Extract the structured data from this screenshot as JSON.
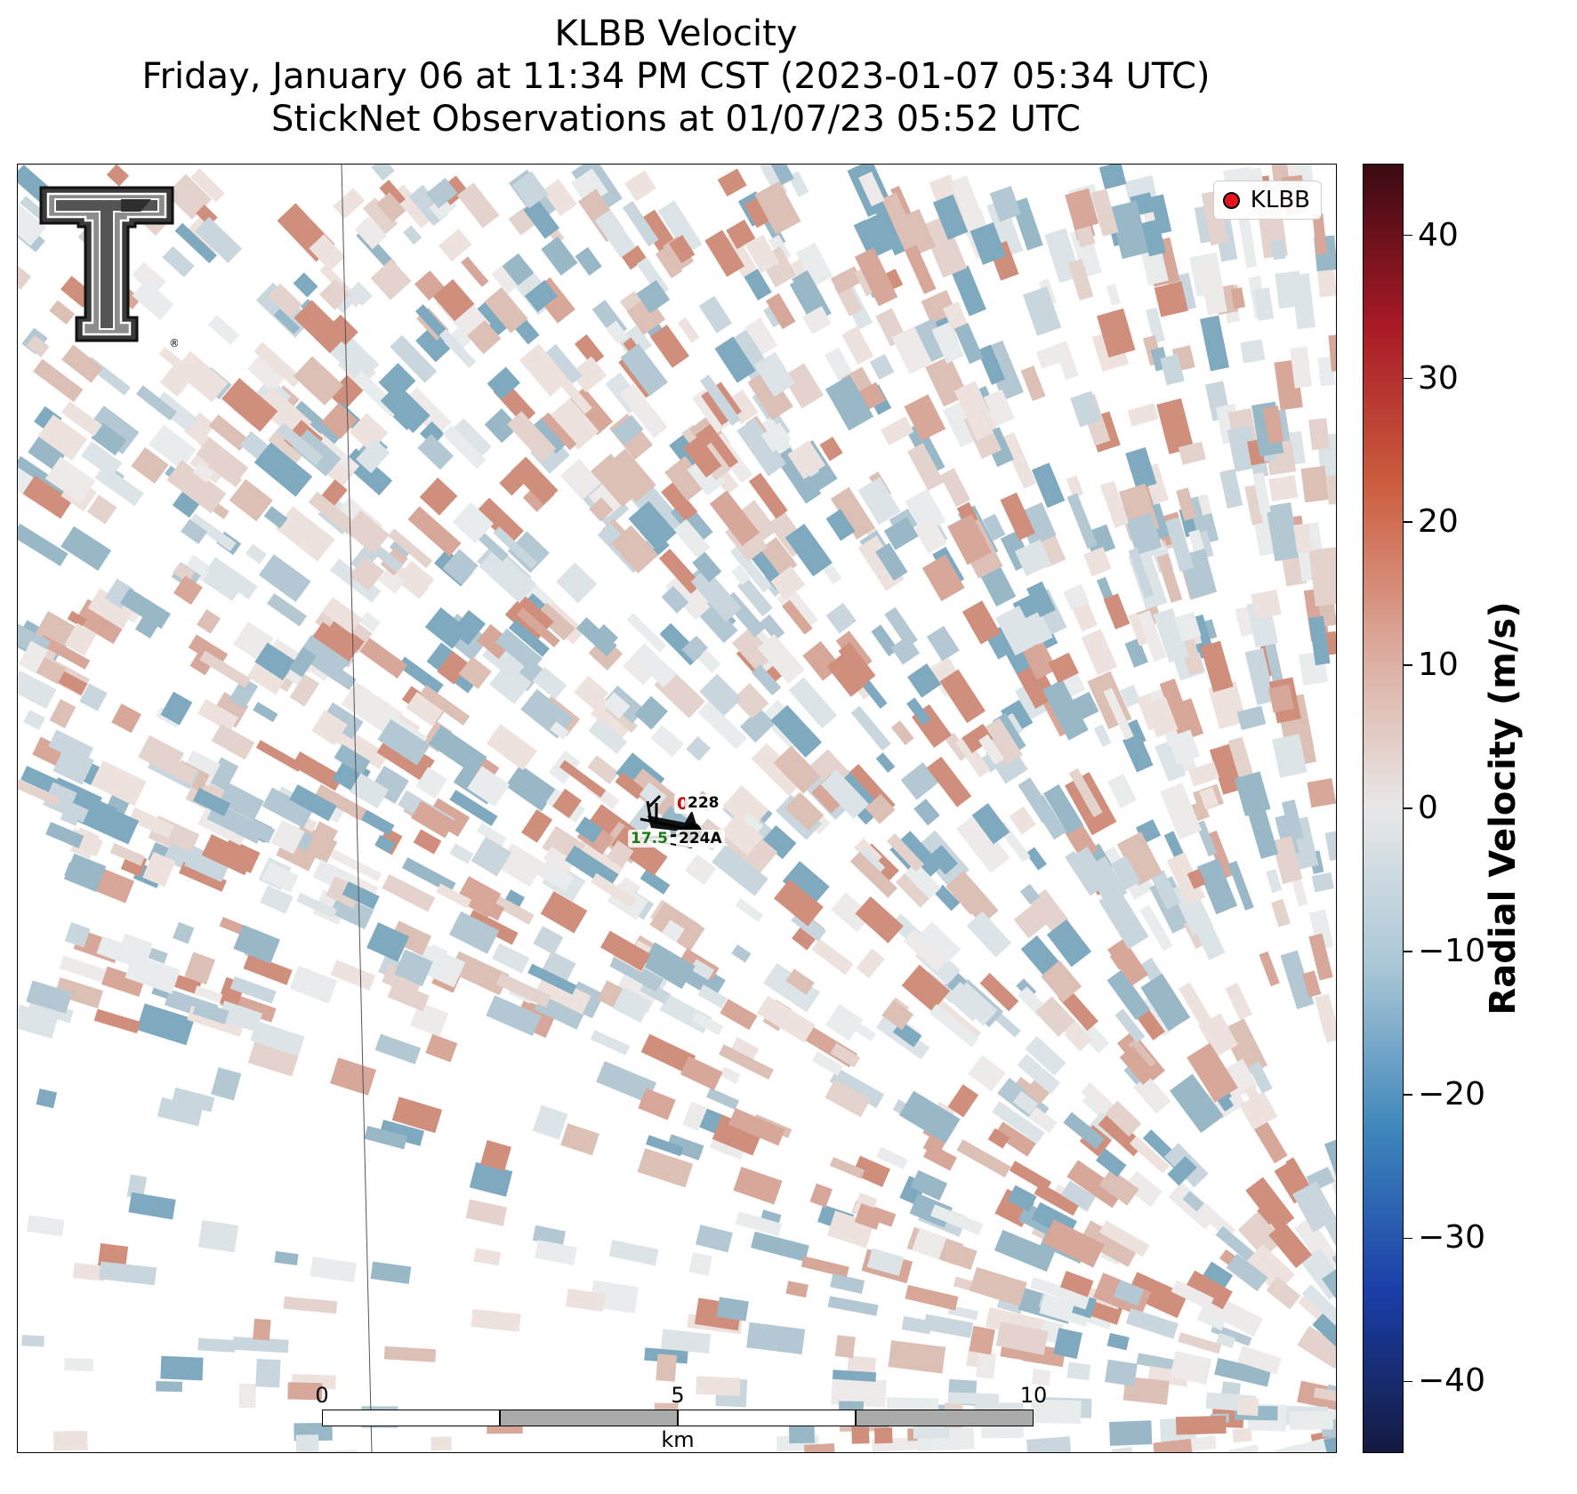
{
  "title": {
    "line1": "KLBB Velocity",
    "line2": "Friday, January 06 at 11:34 PM CST (2023-01-07 05:34 UTC)",
    "line3": "StickNet Observations at 01/07/23 05:52 UTC"
  },
  "legend": {
    "label": "KLBB",
    "marker_color": "#e8141c"
  },
  "logo": {
    "name": "texas-tech-double-t-logo",
    "registered_mark": "®"
  },
  "stations": [
    {
      "id": "228",
      "value": "0",
      "value_color": "#c01010"
    },
    {
      "id": "224A",
      "value": "17.5",
      "value_color": "#1a7a1a"
    }
  ],
  "scalebar": {
    "ticks": [
      "0",
      "5",
      "10"
    ],
    "unit": "km"
  },
  "colorbar": {
    "label": "Radial Velocity (m/s)",
    "ticks": [
      "40",
      "30",
      "20",
      "10",
      "0",
      "−10",
      "−20",
      "−30",
      "−40"
    ],
    "range": [
      -45,
      45
    ],
    "colormap": [
      "#141a40",
      "#1a3fa8",
      "#3d86bb",
      "#a8c6d6",
      "#e8e8e8",
      "#dba99b",
      "#cc5e3e",
      "#a81a26",
      "#3a0a12"
    ]
  }
}
